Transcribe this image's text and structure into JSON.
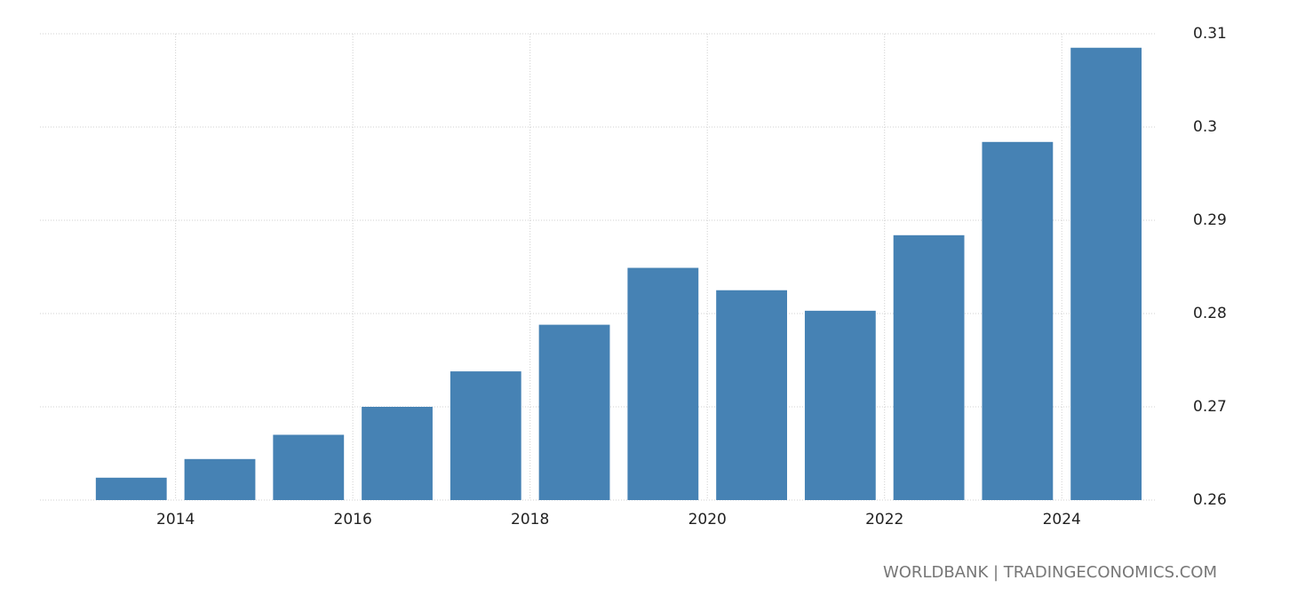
{
  "chart_data": {
    "type": "bar",
    "x": [
      2013,
      2014,
      2015,
      2016,
      2017,
      2018,
      2019,
      2020,
      2021,
      2022,
      2023,
      2024
    ],
    "values": [
      0.2624,
      0.2644,
      0.267,
      0.27,
      0.2738,
      0.2788,
      0.2849,
      0.2825,
      0.2803,
      0.2884,
      0.2984,
      0.3085
    ],
    "color": "#4682b4",
    "xlim": [
      2012.47,
      2025.05
    ],
    "xticks": [
      2014,
      2016,
      2018,
      2020,
      2022,
      2024
    ],
    "ylim": [
      0.26,
      0.31
    ],
    "yticks": [
      0.26,
      0.27,
      0.28,
      0.29,
      0.3,
      0.31
    ],
    "grid": true,
    "source": "WORLDBANK | TRADINGECONOMICS.COM"
  }
}
